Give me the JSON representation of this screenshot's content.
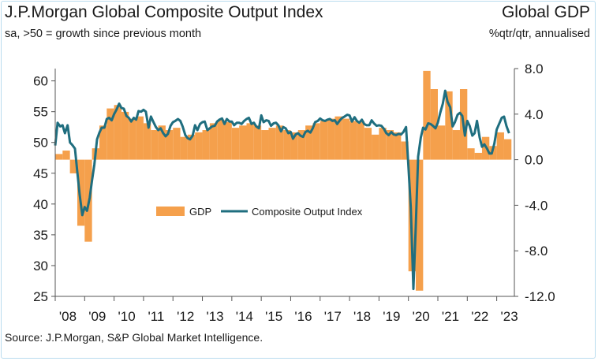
{
  "header": {
    "title": "J.P.Morgan Global Composite Output Index",
    "subtitle": "sa, >50 = growth since previous month",
    "right_title": "Global GDP",
    "right_subtitle": "%qtr/qtr, annualised"
  },
  "footer": {
    "source": "Source: J.P.Morgan, S&P Global Market Intelligence."
  },
  "chart_data": {
    "type": "bar+line",
    "title": "J.P.Morgan Global Composite Output Index",
    "colors": {
      "gdp": "#f5a04c",
      "pmi": "#1f6e7f",
      "axis": "#555555"
    },
    "legend": {
      "position": "center-left",
      "entries": [
        "GDP",
        "Composite Output Index"
      ]
    },
    "x_axis": {
      "range": [
        2008,
        2023.6
      ],
      "tick_labels": [
        "'08",
        "'09",
        "'10",
        "'11",
        "'12",
        "'13",
        "'14",
        "'15",
        "'16",
        "'17",
        "'18",
        "'19",
        "'20",
        "'21",
        "'22",
        "'23"
      ]
    },
    "y_left": {
      "label": "Composite Output Index",
      "range": [
        25,
        62
      ],
      "ticks": [
        25,
        30,
        35,
        40,
        45,
        50,
        55,
        60
      ]
    },
    "y_right": {
      "label": "GDP %qtr/qtr annualised",
      "range": [
        -12,
        8
      ],
      "ticks": [
        "-12.0",
        "-8.0",
        "-4.0",
        "0.0",
        "4.0",
        "8.0"
      ]
    },
    "series": [
      {
        "name": "GDP",
        "axis": "right",
        "kind": "bar",
        "quarters": [
          [
            2008.0,
            0.5
          ],
          [
            2008.25,
            0.8
          ],
          [
            2008.5,
            -1.2
          ],
          [
            2008.75,
            -5.8
          ],
          [
            2009.0,
            -7.2
          ],
          [
            2009.25,
            1.0
          ],
          [
            2009.5,
            3.0
          ],
          [
            2009.75,
            4.5
          ],
          [
            2010.0,
            4.8
          ],
          [
            2010.25,
            4.2
          ],
          [
            2010.5,
            3.6
          ],
          [
            2010.75,
            3.8
          ],
          [
            2011.0,
            3.2
          ],
          [
            2011.25,
            2.6
          ],
          [
            2011.5,
            3.0
          ],
          [
            2011.75,
            2.6
          ],
          [
            2012.0,
            2.8
          ],
          [
            2012.25,
            2.0
          ],
          [
            2012.5,
            2.2
          ],
          [
            2012.75,
            2.4
          ],
          [
            2013.0,
            2.6
          ],
          [
            2013.25,
            3.2
          ],
          [
            2013.5,
            3.5
          ],
          [
            2013.75,
            3.3
          ],
          [
            2014.0,
            2.8
          ],
          [
            2014.25,
            3.0
          ],
          [
            2014.5,
            3.2
          ],
          [
            2014.75,
            3.0
          ],
          [
            2015.0,
            2.6
          ],
          [
            2015.25,
            2.8
          ],
          [
            2015.5,
            3.0
          ],
          [
            2015.75,
            2.6
          ],
          [
            2016.0,
            2.4
          ],
          [
            2016.25,
            2.6
          ],
          [
            2016.5,
            3.0
          ],
          [
            2016.75,
            3.2
          ],
          [
            2017.0,
            3.4
          ],
          [
            2017.25,
            3.6
          ],
          [
            2017.5,
            3.8
          ],
          [
            2017.75,
            3.6
          ],
          [
            2018.0,
            3.4
          ],
          [
            2018.25,
            3.4
          ],
          [
            2018.5,
            2.8
          ],
          [
            2018.75,
            2.2
          ],
          [
            2019.0,
            2.8
          ],
          [
            2019.25,
            2.6
          ],
          [
            2019.5,
            2.4
          ],
          [
            2019.75,
            1.6
          ],
          [
            2020.0,
            -9.8
          ],
          [
            2020.25,
            -11.5
          ],
          [
            2020.5,
            7.8
          ],
          [
            2020.75,
            6.2
          ],
          [
            2021.0,
            3.0
          ],
          [
            2021.25,
            6.0
          ],
          [
            2021.5,
            2.6
          ],
          [
            2021.75,
            6.2
          ],
          [
            2022.0,
            1.0
          ],
          [
            2022.25,
            0.6
          ],
          [
            2022.5,
            2.0
          ],
          [
            2022.75,
            1.2
          ],
          [
            2023.0,
            2.4
          ],
          [
            2023.25,
            1.8
          ]
        ]
      },
      {
        "name": "Composite Output Index",
        "axis": "left",
        "kind": "line",
        "points": [
          [
            2008.0,
            49.5
          ],
          [
            2008.08,
            53.2
          ],
          [
            2008.17,
            52.6
          ],
          [
            2008.25,
            52.8
          ],
          [
            2008.33,
            51.5
          ],
          [
            2008.42,
            52.8
          ],
          [
            2008.5,
            50.0
          ],
          [
            2008.58,
            49.6
          ],
          [
            2008.67,
            49.0
          ],
          [
            2008.75,
            45.2
          ],
          [
            2008.83,
            41.5
          ],
          [
            2008.92,
            38.2
          ],
          [
            2009.0,
            39.5
          ],
          [
            2009.08,
            38.9
          ],
          [
            2009.17,
            41.0
          ],
          [
            2009.25,
            43.8
          ],
          [
            2009.33,
            46.4
          ],
          [
            2009.42,
            50.5
          ],
          [
            2009.5,
            51.6
          ],
          [
            2009.58,
            52.4
          ],
          [
            2009.67,
            52.4
          ],
          [
            2009.75,
            53.8
          ],
          [
            2009.83,
            54.0
          ],
          [
            2009.92,
            53.6
          ],
          [
            2010.0,
            54.6
          ],
          [
            2010.08,
            55.3
          ],
          [
            2010.17,
            56.3
          ],
          [
            2010.25,
            55.6
          ],
          [
            2010.33,
            55.5
          ],
          [
            2010.42,
            54.3
          ],
          [
            2010.5,
            54.0
          ],
          [
            2010.58,
            53.4
          ],
          [
            2010.67,
            54.0
          ],
          [
            2010.75,
            53.7
          ],
          [
            2010.83,
            55.1
          ],
          [
            2010.92,
            55.0
          ],
          [
            2011.0,
            55.3
          ],
          [
            2011.08,
            55.0
          ],
          [
            2011.17,
            52.4
          ],
          [
            2011.25,
            54.2
          ],
          [
            2011.33,
            53.4
          ],
          [
            2011.42,
            52.5
          ],
          [
            2011.5,
            52.0
          ],
          [
            2011.58,
            52.3
          ],
          [
            2011.67,
            51.5
          ],
          [
            2011.75,
            51.0
          ],
          [
            2011.83,
            51.4
          ],
          [
            2011.92,
            52.7
          ],
          [
            2012.0,
            53.3
          ],
          [
            2012.08,
            53.5
          ],
          [
            2012.17,
            53.8
          ],
          [
            2012.25,
            53.5
          ],
          [
            2012.33,
            52.6
          ],
          [
            2012.42,
            51.2
          ],
          [
            2012.5,
            50.7
          ],
          [
            2012.58,
            50.5
          ],
          [
            2012.67,
            51.1
          ],
          [
            2012.75,
            52.8
          ],
          [
            2012.83,
            52.0
          ],
          [
            2012.92,
            53.0
          ],
          [
            2013.0,
            53.3
          ],
          [
            2013.08,
            53.4
          ],
          [
            2013.17,
            52.0
          ],
          [
            2013.25,
            52.3
          ],
          [
            2013.33,
            52.6
          ],
          [
            2013.42,
            52.7
          ],
          [
            2013.5,
            53.4
          ],
          [
            2013.58,
            53.7
          ],
          [
            2013.67,
            53.9
          ],
          [
            2013.75,
            53.0
          ],
          [
            2013.83,
            53.8
          ],
          [
            2013.92,
            53.4
          ],
          [
            2014.0,
            53.4
          ],
          [
            2014.08,
            52.8
          ],
          [
            2014.17,
            53.2
          ],
          [
            2014.25,
            53.2
          ],
          [
            2014.33,
            53.0
          ],
          [
            2014.42,
            53.5
          ],
          [
            2014.5,
            53.8
          ],
          [
            2014.58,
            54.0
          ],
          [
            2014.67,
            53.0
          ],
          [
            2014.75,
            53.2
          ],
          [
            2014.83,
            52.6
          ],
          [
            2014.92,
            52.3
          ],
          [
            2015.0,
            54.4
          ],
          [
            2015.08,
            53.3
          ],
          [
            2015.17,
            53.6
          ],
          [
            2015.25,
            53.5
          ],
          [
            2015.33,
            52.7
          ],
          [
            2015.42,
            53.1
          ],
          [
            2015.5,
            53.2
          ],
          [
            2015.58,
            52.8
          ],
          [
            2015.67,
            51.8
          ],
          [
            2015.75,
            52.5
          ],
          [
            2015.83,
            52.3
          ],
          [
            2015.92,
            51.5
          ],
          [
            2016.0,
            51.7
          ],
          [
            2016.08,
            50.6
          ],
          [
            2016.17,
            51.3
          ],
          [
            2016.25,
            51.5
          ],
          [
            2016.33,
            51.1
          ],
          [
            2016.42,
            50.9
          ],
          [
            2016.5,
            51.7
          ],
          [
            2016.58,
            51.9
          ],
          [
            2016.67,
            51.6
          ],
          [
            2016.75,
            52.3
          ],
          [
            2016.83,
            53.3
          ],
          [
            2016.92,
            53.5
          ],
          [
            2017.0,
            53.9
          ],
          [
            2017.08,
            53.6
          ],
          [
            2017.17,
            53.5
          ],
          [
            2017.25,
            53.7
          ],
          [
            2017.33,
            53.8
          ],
          [
            2017.42,
            53.5
          ],
          [
            2017.5,
            53.6
          ],
          [
            2017.58,
            53.0
          ],
          [
            2017.67,
            53.6
          ],
          [
            2017.75,
            54.0
          ],
          [
            2017.83,
            54.2
          ],
          [
            2017.92,
            54.5
          ],
          [
            2018.0,
            54.4
          ],
          [
            2018.08,
            53.4
          ],
          [
            2018.17,
            54.1
          ],
          [
            2018.25,
            53.5
          ],
          [
            2018.33,
            53.2
          ],
          [
            2018.42,
            53.7
          ],
          [
            2018.5,
            53.0
          ],
          [
            2018.58,
            52.8
          ],
          [
            2018.67,
            52.8
          ],
          [
            2018.75,
            53.6
          ],
          [
            2018.83,
            53.1
          ],
          [
            2018.92,
            52.7
          ],
          [
            2019.0,
            52.8
          ],
          [
            2019.08,
            52.7
          ],
          [
            2019.17,
            52.2
          ],
          [
            2019.25,
            51.5
          ],
          [
            2019.33,
            51.2
          ],
          [
            2019.42,
            51.7
          ],
          [
            2019.5,
            51.3
          ],
          [
            2019.58,
            51.2
          ],
          [
            2019.67,
            51.4
          ],
          [
            2019.75,
            51.3
          ],
          [
            2019.83,
            51.7
          ],
          [
            2019.92,
            52.5
          ],
          [
            2020.0,
            46.1
          ],
          [
            2020.08,
            39.4
          ],
          [
            2020.17,
            26.2
          ],
          [
            2020.25,
            36.3
          ],
          [
            2020.33,
            47.7
          ],
          [
            2020.42,
            50.8
          ],
          [
            2020.5,
            52.4
          ],
          [
            2020.58,
            52.1
          ],
          [
            2020.67,
            53.1
          ],
          [
            2020.75,
            53.0
          ],
          [
            2020.83,
            52.7
          ],
          [
            2020.92,
            52.3
          ],
          [
            2021.0,
            53.2
          ],
          [
            2021.08,
            54.8
          ],
          [
            2021.17,
            56.3
          ],
          [
            2021.25,
            58.4
          ],
          [
            2021.33,
            56.6
          ],
          [
            2021.42,
            55.7
          ],
          [
            2021.5,
            52.6
          ],
          [
            2021.58,
            53.3
          ],
          [
            2021.67,
            54.5
          ],
          [
            2021.75,
            54.8
          ],
          [
            2021.83,
            54.3
          ],
          [
            2021.92,
            51.1
          ],
          [
            2022.0,
            53.5
          ],
          [
            2022.08,
            52.7
          ],
          [
            2022.17,
            51.1
          ],
          [
            2022.25,
            51.5
          ],
          [
            2022.33,
            53.5
          ],
          [
            2022.42,
            50.8
          ],
          [
            2022.5,
            49.3
          ],
          [
            2022.58,
            49.7
          ],
          [
            2022.67,
            49.0
          ],
          [
            2022.75,
            48.2
          ],
          [
            2022.83,
            48.2
          ],
          [
            2022.92,
            49.8
          ],
          [
            2023.0,
            52.1
          ],
          [
            2023.08,
            53.0
          ],
          [
            2023.17,
            54.0
          ],
          [
            2023.25,
            54.2
          ],
          [
            2023.33,
            52.7
          ],
          [
            2023.42,
            51.5
          ]
        ]
      }
    ]
  }
}
